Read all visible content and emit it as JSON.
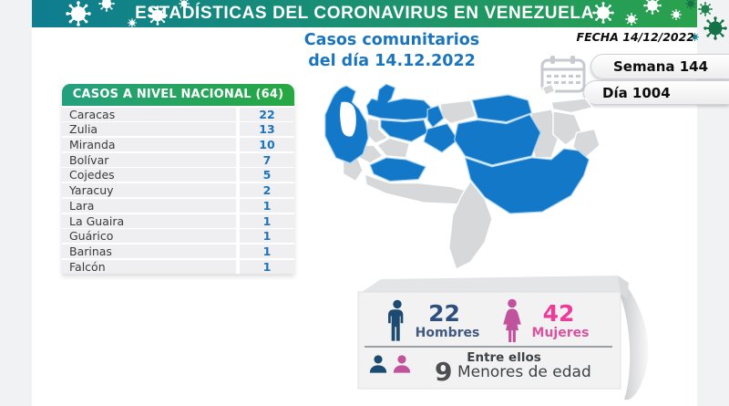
{
  "header": {
    "title": "ESTADÍSTICAS DEL CORONAVIRUS EN VENEZUELA"
  },
  "subtitle": {
    "line1": "Casos comunitarios",
    "line2": "del día 14.12.2022"
  },
  "meta": {
    "fecha": "FECHA 14/12/2022",
    "semana": "Semana 144",
    "dia": "Día 1004"
  },
  "table": {
    "header": "CASOS A NIVEL NACIONAL (64)",
    "total": 64,
    "rows": [
      {
        "state": "Caracas",
        "cases": "22"
      },
      {
        "state": "Zulia",
        "cases": "13"
      },
      {
        "state": "Miranda",
        "cases": "10"
      },
      {
        "state": "Bolívar",
        "cases": "7"
      },
      {
        "state": "Cojedes",
        "cases": "5"
      },
      {
        "state": "Yaracuy",
        "cases": "2"
      },
      {
        "state": "Lara",
        "cases": "1"
      },
      {
        "state": "La Guaira",
        "cases": "1"
      },
      {
        "state": "Guárico",
        "cases": "1"
      },
      {
        "state": "Barinas",
        "cases": "1"
      },
      {
        "state": "Falcón",
        "cases": "1"
      }
    ]
  },
  "stats": {
    "hombres_value": "22",
    "hombres_label": "Hombres",
    "mujeres_value": "42",
    "mujeres_label": "Mujeres",
    "entre_ellos": "Entre ellos",
    "menores_value": "9",
    "menores_label": "Menores de edad"
  },
  "colors": {
    "banner_left": "#0e7d90",
    "banner_right": "#2aa24c",
    "title_blue": "#1b75bc",
    "table_header_left": "#24a07f",
    "table_header_right": "#27a841",
    "value_blue": "#1c75bc",
    "map_highlight": "#1478c8",
    "map_base": "#d6d8da",
    "male_navy": "#1c4a71",
    "female_pink": "#c0539b",
    "pink_number": "#ee3a99"
  },
  "chart_data": {
    "type": "table",
    "title": "CASOS A NIVEL NACIONAL (64)",
    "subtitle": "Casos comunitarios del día 14.12.2022",
    "date": "14/12/2022",
    "week": 144,
    "day": 1004,
    "categories": [
      "Caracas",
      "Zulia",
      "Miranda",
      "Bolívar",
      "Cojedes",
      "Yaracuy",
      "Lara",
      "La Guaira",
      "Guárico",
      "Barinas",
      "Falcón"
    ],
    "values": [
      22,
      13,
      10,
      7,
      5,
      2,
      1,
      1,
      1,
      1,
      1
    ],
    "total": 64,
    "gender_breakdown": {
      "hombres": 22,
      "mujeres": 42,
      "menores_de_edad": 9
    },
    "map": {
      "region": "Venezuela",
      "highlighted_states": [
        "Caracas",
        "Zulia",
        "Miranda",
        "Bolívar",
        "Cojedes",
        "Yaracuy",
        "Lara",
        "La Guaira",
        "Guárico",
        "Barinas",
        "Falcón"
      ],
      "highlight_color": "#1478c8",
      "base_color": "#d6d8da"
    }
  }
}
